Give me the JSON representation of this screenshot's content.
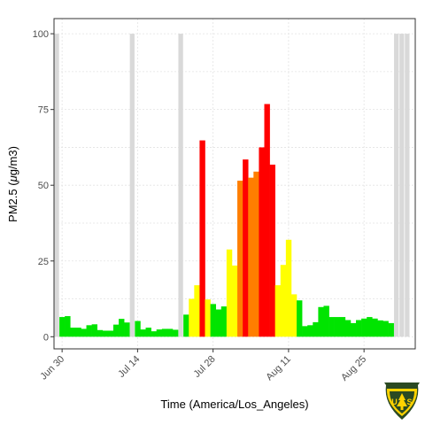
{
  "chart_data": {
    "type": "bar",
    "title": "",
    "xlabel": "Time (America/Los_Angeles)",
    "ylabel": "PM2.5 (μg/m3)",
    "ylabel_parts": [
      "PM2.5 (",
      "μ",
      "g/m3)"
    ],
    "ylim": [
      -4,
      105
    ],
    "yticks": [
      0,
      25,
      50,
      75,
      100
    ],
    "x_range": [
      "2018-06-29",
      "2018-09-04"
    ],
    "xticks": [
      {
        "date": "2018-06-30",
        "label": "Jun 30"
      },
      {
        "date": "2018-07-14",
        "label": "Jul 14"
      },
      {
        "date": "2018-07-28",
        "label": "Jul 28"
      },
      {
        "date": "2018-08-11",
        "label": "Aug 11"
      },
      {
        "date": "2018-08-25",
        "label": "Aug 25"
      }
    ],
    "grid": true,
    "colors": {
      "good": "#00e400",
      "moderate": "#ffff00",
      "usg": "#ff7e00",
      "unhealthy": "#ff0000",
      "missing": "#d9d9d9"
    },
    "missing_days": [
      "2018-06-29",
      "2018-07-13",
      "2018-07-22",
      "2018-08-31",
      "2018-09-01",
      "2018-09-02"
    ],
    "missing_value": 100,
    "series": [
      {
        "x": [
          "2018-06-30",
          "2018-07-01",
          "2018-07-02",
          "2018-07-03",
          "2018-07-04",
          "2018-07-05",
          "2018-07-06",
          "2018-07-07",
          "2018-07-08",
          "2018-07-09",
          "2018-07-10",
          "2018-07-11",
          "2018-07-12",
          "2018-07-14",
          "2018-07-15",
          "2018-07-16",
          "2018-07-17",
          "2018-07-18",
          "2018-07-19",
          "2018-07-20",
          "2018-07-21",
          "2018-07-23",
          "2018-07-24",
          "2018-07-25",
          "2018-07-26",
          "2018-07-27",
          "2018-07-28",
          "2018-07-29",
          "2018-07-30",
          "2018-07-31",
          "2018-08-01",
          "2018-08-02",
          "2018-08-03",
          "2018-08-04",
          "2018-08-05",
          "2018-08-06",
          "2018-08-07",
          "2018-08-08",
          "2018-08-09",
          "2018-08-10",
          "2018-08-11",
          "2018-08-12",
          "2018-08-13",
          "2018-08-14",
          "2018-08-15",
          "2018-08-16",
          "2018-08-17",
          "2018-08-18",
          "2018-08-19",
          "2018-08-20",
          "2018-08-21",
          "2018-08-22",
          "2018-08-23",
          "2018-08-24",
          "2018-08-25",
          "2018-08-26",
          "2018-08-27",
          "2018-08-28",
          "2018-08-29",
          "2018-08-30"
        ],
        "values": [
          6.5,
          6.8,
          3.0,
          3.0,
          2.6,
          3.8,
          4.1,
          2.2,
          2.0,
          2.0,
          4.0,
          5.9,
          4.7,
          5.2,
          2.4,
          3.0,
          1.8,
          2.4,
          2.6,
          2.6,
          2.3,
          7.3,
          12.5,
          17.0,
          64.8,
          12.3,
          10.8,
          9.0,
          10.0,
          28.8,
          23.5,
          51.5,
          58.5,
          52.5,
          54.5,
          62.5,
          76.8,
          56.8,
          17.0,
          23.7,
          32.0,
          14.0,
          12.0,
          3.5,
          3.8,
          4.8,
          9.8,
          10.2,
          6.5,
          6.5,
          6.5,
          5.5,
          4.5,
          5.5,
          6.0,
          6.5,
          6.0,
          5.4,
          5.2,
          4.5
        ]
      }
    ]
  },
  "logo": {
    "name": "usfs-shield",
    "text": "U S",
    "text_left": "U",
    "text_right": "S",
    "ring_text": "FOREST SERVICE",
    "colors": {
      "dark": "#2b4a22",
      "gold": "#ffd200",
      "bg": "#ffffff"
    }
  }
}
